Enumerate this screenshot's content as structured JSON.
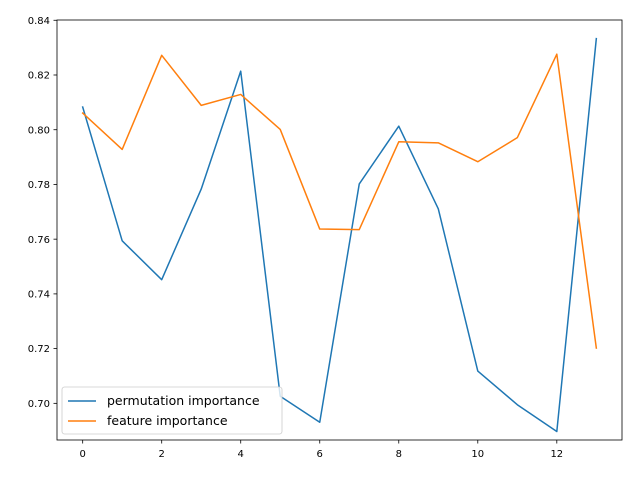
{
  "chart_data": {
    "type": "line",
    "title": "",
    "xlabel": "",
    "ylabel": "",
    "x": [
      0,
      1,
      2,
      3,
      4,
      5,
      6,
      7,
      8,
      9,
      10,
      11,
      12,
      13
    ],
    "xlim": [
      -0.65,
      13.65
    ],
    "ylim": [
      0.6866,
      0.8401
    ],
    "xticks": [
      0,
      2,
      4,
      6,
      8,
      10,
      12
    ],
    "yticks": [
      0.7,
      0.72,
      0.74,
      0.76,
      0.78,
      0.8,
      0.82,
      0.84
    ],
    "xtick_labels": [
      "0",
      "2",
      "4",
      "6",
      "8",
      "10",
      "12"
    ],
    "ytick_labels": [
      "0.70",
      "0.72",
      "0.74",
      "0.76",
      "0.78",
      "0.80",
      "0.82",
      "0.84"
    ],
    "grid": false,
    "legend_position": "lower-left",
    "series": [
      {
        "name": "permutation importance",
        "color": "#1f77b4",
        "values": [
          0.8083,
          0.7594,
          0.7452,
          0.7783,
          0.8214,
          0.7026,
          0.6931,
          0.7802,
          0.8013,
          0.7711,
          0.7118,
          0.6995,
          0.6897,
          0.8333
        ]
      },
      {
        "name": "feature importance",
        "color": "#ff7f0e",
        "values": [
          0.8061,
          0.7928,
          0.8272,
          0.8089,
          0.8129,
          0.8001,
          0.7637,
          0.7635,
          0.7956,
          0.7952,
          0.7883,
          0.7971,
          0.8276,
          0.7202
        ]
      }
    ]
  }
}
